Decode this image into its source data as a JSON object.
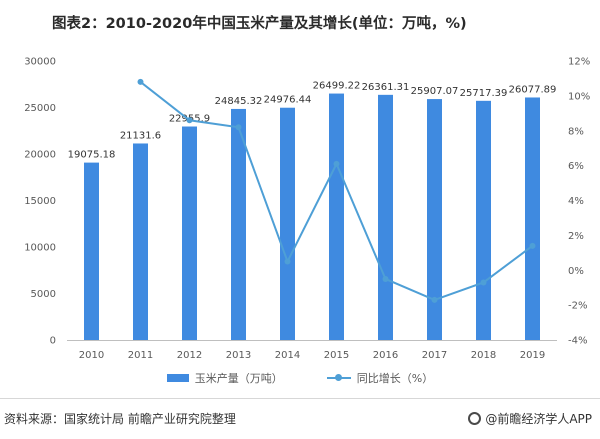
{
  "title": "图表2：2010-2020年中国玉米产量及其增长(单位：万吨，%)",
  "chart_data": {
    "type": "bar",
    "title": "图表2：2010-2020年中国玉米产量及其增长(单位：万吨，%)",
    "categories": [
      "2010",
      "2011",
      "2012",
      "2013",
      "2014",
      "2015",
      "2016",
      "2017",
      "2018",
      "2019"
    ],
    "series": [
      {
        "name": "玉米产量（万吨）",
        "type": "bar",
        "axis": "left",
        "values": [
          19075.18,
          21131.6,
          22955.9,
          24845.32,
          24976.44,
          26499.22,
          26361.31,
          25907.07,
          25717.39,
          26077.89
        ],
        "labels": [
          "19075.18",
          "21131.6",
          "22955.9",
          "24845.32",
          "24976.44",
          "26499.22",
          "26361.31",
          "25907.07",
          "25717.39",
          "26077.89"
        ]
      },
      {
        "name": "同比增长（%）",
        "type": "line",
        "axis": "right",
        "values": [
          null,
          10.8,
          8.6,
          8.2,
          0.5,
          6.1,
          -0.5,
          -1.7,
          -0.7,
          1.4
        ]
      }
    ],
    "y_left": {
      "min": 0,
      "max": 30000,
      "ticks": [
        "0",
        "5000",
        "10000",
        "15000",
        "20000",
        "25000",
        "30000"
      ]
    },
    "y_right": {
      "min": -4,
      "max": 12,
      "ticks": [
        "-4%",
        "-2%",
        "0%",
        "2%",
        "4%",
        "6%",
        "8%",
        "10%",
        "12%"
      ]
    },
    "legend_position": "bottom"
  },
  "legend": {
    "bar_label": "玉米产量（万吨）",
    "line_label": "同比增长（%）"
  },
  "footer": {
    "source": "资料来源：国家统计局 前瞻产业研究院整理",
    "brand": "@前瞻经济学人APP"
  },
  "colors": {
    "bar": "#3f8ae0",
    "line": "#4e9fd6"
  }
}
